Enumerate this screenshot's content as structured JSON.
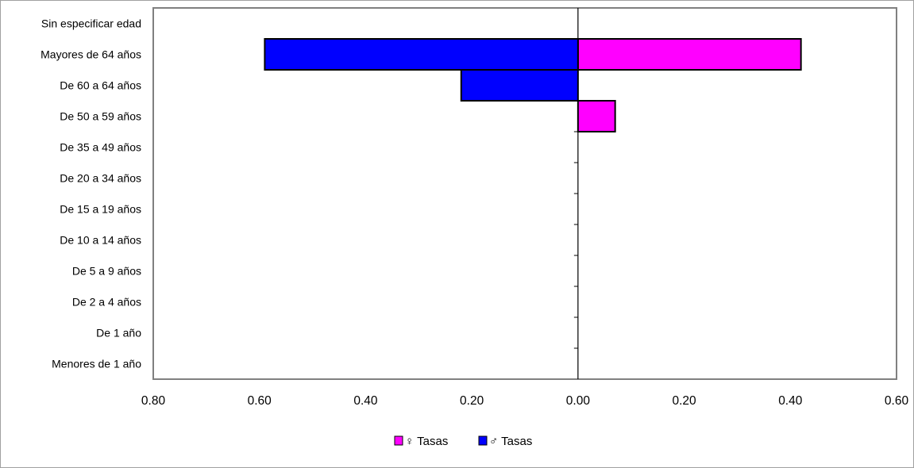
{
  "chart_data": {
    "type": "bar",
    "orientation": "horizontal",
    "layout": "population-pyramid",
    "categories": [
      "Sin especificar edad",
      "Mayores de 64 años",
      "De 60 a 64 años",
      "De 50 a 59 años",
      "De 35 a 49 años",
      "De 20 a 34 años",
      "De 15 a 19 años",
      "De 10 a 14 años",
      "De 5 a 9 años",
      "De 2 a 4 años",
      "De 1 año",
      "Menores de 1 año"
    ],
    "series": [
      {
        "name": "♀ Tasas",
        "color": "#ff00ff",
        "side": "right",
        "values": [
          0,
          0.42,
          0,
          0.07,
          0,
          0,
          0,
          0,
          0,
          0,
          0,
          0
        ]
      },
      {
        "name": "♂ Tasas",
        "color": "#0000ff",
        "side": "left",
        "values": [
          0,
          0.59,
          0.22,
          0,
          0,
          0,
          0,
          0,
          0,
          0,
          0,
          0
        ]
      }
    ],
    "xlim": [
      -0.8,
      0.6
    ],
    "x_ticks": [
      -0.8,
      -0.6,
      -0.4,
      -0.2,
      0,
      0.2,
      0.4,
      0.6
    ],
    "x_tick_labels": [
      "0.80",
      "0.60",
      "0.40",
      "0.20",
      "0.00",
      "0.20",
      "0.40",
      "0.60"
    ],
    "grid": false,
    "legend_position": "bottom-center",
    "title": "",
    "xlabel": "",
    "ylabel": ""
  }
}
